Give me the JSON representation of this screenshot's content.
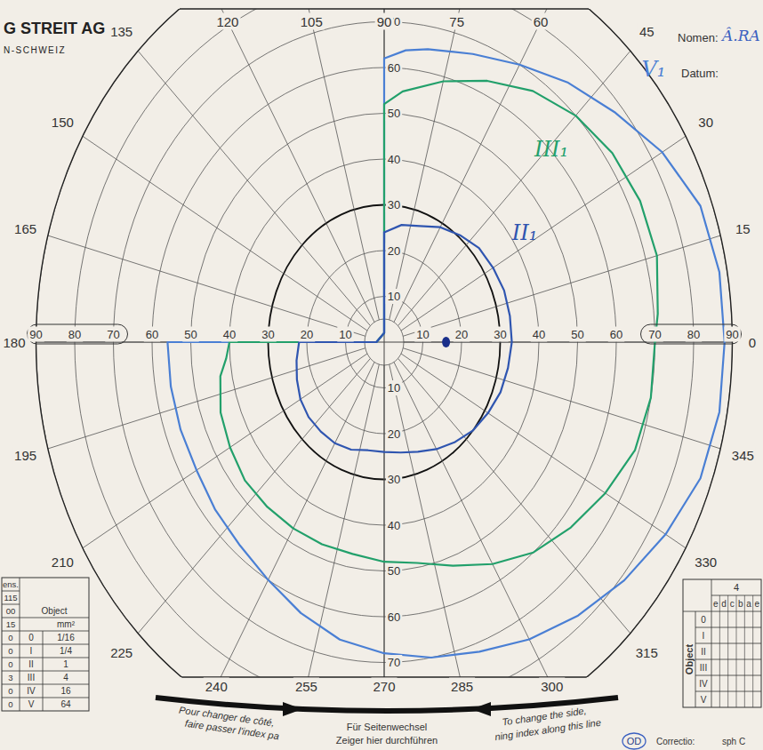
{
  "chart_data": {
    "type": "polar",
    "rlim": [
      0,
      90
    ],
    "theta_ticks": [
      0,
      15,
      30,
      45,
      60,
      75,
      90,
      105,
      120,
      135,
      150,
      165,
      180,
      195,
      210,
      225,
      240,
      255,
      270,
      285,
      300,
      315,
      330,
      345
    ],
    "rticks": [
      10,
      20,
      30,
      40,
      50,
      60,
      70,
      80,
      90
    ],
    "rticks_vertical": [
      10,
      20,
      30,
      40,
      50,
      60,
      70
    ],
    "grid": true,
    "series": [
      {
        "name": "V₁",
        "color": "#4a7fd4",
        "angles": [
          90,
          85,
          80,
          70,
          60,
          50,
          40,
          30,
          20,
          10,
          0,
          350,
          340,
          330,
          320,
          310,
          300,
          290,
          280,
          270,
          260,
          250,
          240,
          230,
          220,
          210,
          200,
          190,
          180,
          180,
          90,
          90
        ],
        "values": [
          62,
          64,
          65,
          67,
          70,
          74,
          78,
          83,
          87,
          88,
          88,
          88,
          87,
          84,
          81,
          78,
          75,
          72,
          70,
          68,
          66,
          63,
          60,
          58,
          57,
          56,
          56,
          56,
          56,
          2,
          2,
          62
        ]
      },
      {
        "name": "III₁",
        "color": "#22a06b",
        "angles": [
          90,
          85,
          75,
          65,
          55,
          45,
          35,
          25,
          15,
          5,
          0,
          350,
          340,
          330,
          320,
          310,
          300,
          290,
          280,
          270,
          260,
          250,
          240,
          230,
          220,
          210,
          200,
          190,
          185,
          180,
          180,
          90,
          90
        ],
        "values": [
          52,
          55,
          59,
          63,
          67,
          70,
          72,
          73,
          73,
          71,
          70,
          70,
          69,
          66,
          63,
          60,
          56,
          52,
          49,
          48,
          47,
          47,
          47,
          47,
          47,
          46,
          45,
          43,
          41,
          40,
          2,
          2,
          52
        ]
      },
      {
        "name": "II₁",
        "color": "#2f55b0",
        "angles": [
          90,
          80,
          70,
          60,
          50,
          40,
          30,
          20,
          10,
          0,
          350,
          340,
          330,
          320,
          310,
          300,
          290,
          280,
          270,
          260,
          250,
          240,
          230,
          220,
          210,
          200,
          190,
          180,
          180,
          90,
          90
        ],
        "values": [
          24,
          26,
          27,
          29,
          30.5,
          32,
          32.5,
          33,
          33,
          33,
          32.5,
          32,
          31,
          30,
          28.5,
          27,
          25.5,
          24.5,
          24,
          24,
          25,
          25.5,
          25.5,
          25.5,
          25,
          24,
          23,
          22,
          2,
          2,
          24
        ]
      }
    ],
    "blind_spot": {
      "angle": 0,
      "value": 16,
      "color": "#1a2f8a"
    }
  },
  "header": {
    "brand": "G STREIT AG",
    "place": "N-SCHWEIZ",
    "name_label": "Nomen:",
    "name": "Â.RA",
    "date_label": "Datum:"
  },
  "left_table": {
    "side_column": [
      "ens.",
      "115",
      "00",
      "15",
      "0",
      "0",
      "0",
      "3",
      "0",
      "0"
    ],
    "header": "Object",
    "unit": "mm²",
    "objects": [
      "0",
      "I",
      "II",
      "III",
      "IV",
      "V"
    ],
    "areas": [
      "1/16",
      "1/4",
      "1",
      "4",
      "16",
      "64"
    ]
  },
  "right_table": {
    "header": "4",
    "columns": [
      "e",
      "d",
      "c",
      "b",
      "a",
      "e"
    ],
    "label": "Object",
    "rows": [
      "0",
      "I",
      "II",
      "III",
      "IV",
      "V"
    ]
  },
  "footer": {
    "french": [
      "Pour changer de côté,",
      "faire passer l'index pa"
    ],
    "german": [
      "Für Seitenwechsel",
      "Zeiger hier durchführen"
    ],
    "english": [
      "To change the side,",
      "ning index along this line"
    ],
    "eye": "OD",
    "correction": "Correctio:",
    "sph": "sph C"
  }
}
